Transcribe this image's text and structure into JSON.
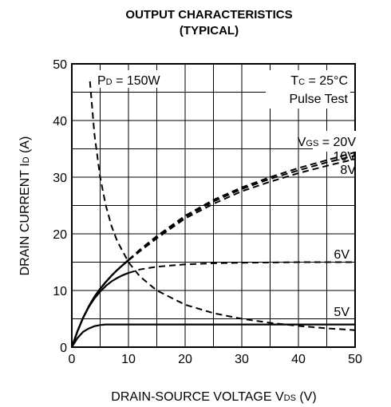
{
  "chart_data": {
    "type": "line",
    "title_line1": "OUTPUT CHARACTERISTICS",
    "title_line2": "(TYPICAL)",
    "xlabel_main": "DRAIN-SOURCE VOLTAGE  V",
    "xlabel_sub": "DS",
    "xlabel_unit": " (V)",
    "ylabel_main": "DRAIN CURRENT  I",
    "ylabel_sub": "D",
    "ylabel_unit": " (A)",
    "xlim": [
      0,
      50
    ],
    "ylim": [
      0,
      50
    ],
    "x_ticks": [
      0,
      10,
      20,
      30,
      40,
      50
    ],
    "y_ticks": [
      0,
      10,
      20,
      30,
      40,
      50
    ],
    "grid": true,
    "annotations": {
      "pd_main": "P",
      "pd_sub": "D",
      "pd_value": " = 150W",
      "tc_main": "T",
      "tc_sub": "C",
      "tc_value": " = 25°C",
      "pulse": "Pulse Test"
    },
    "series": [
      {
        "name": "20V",
        "label_main": "V",
        "label_sub": "GS",
        "label_text": " = 20V",
        "style": "solid-dashed",
        "x": [
          0,
          1,
          2,
          3,
          4,
          5,
          6,
          7,
          8,
          9,
          10,
          12,
          15,
          20,
          25,
          30,
          35,
          40,
          45,
          50
        ],
        "y": [
          0,
          2.8,
          5.2,
          7.2,
          8.9,
          10.3,
          11.5,
          12.6,
          13.6,
          14.5,
          15.4,
          17.2,
          19.6,
          23.2,
          26.0,
          28.2,
          30.0,
          31.6,
          33.0,
          34.4
        ]
      },
      {
        "name": "10V",
        "label_text": "10V",
        "style": "solid-dashed",
        "x": [
          0,
          1,
          2,
          3,
          4,
          5,
          6,
          7,
          8,
          9,
          10,
          12,
          15,
          20,
          25,
          30,
          35,
          40,
          45,
          50
        ],
        "y": [
          0,
          2.8,
          5.2,
          7.2,
          8.9,
          10.3,
          11.5,
          12.6,
          13.6,
          14.5,
          15.4,
          17.1,
          19.4,
          23.0,
          25.7,
          27.9,
          29.7,
          31.2,
          32.6,
          33.8
        ]
      },
      {
        "name": "8V",
        "label_text": "8V",
        "style": "solid-dashed",
        "x": [
          0,
          1,
          2,
          3,
          4,
          5,
          6,
          7,
          8,
          9,
          10,
          12,
          15,
          20,
          25,
          30,
          35,
          40,
          45,
          50
        ],
        "y": [
          0,
          2.8,
          5.2,
          7.2,
          8.9,
          10.3,
          11.5,
          12.6,
          13.6,
          14.5,
          15.3,
          16.9,
          19.2,
          22.7,
          25.3,
          27.5,
          29.2,
          30.7,
          32.0,
          33.2
        ]
      },
      {
        "name": "6V",
        "label_text": "6V",
        "style": "solid-dashed",
        "x": [
          0,
          1,
          2,
          3,
          4,
          5,
          6,
          7,
          8,
          9,
          10,
          11,
          12,
          15,
          20,
          25,
          30,
          35,
          40,
          45,
          50
        ],
        "y": [
          0,
          2.8,
          5.2,
          7.1,
          8.6,
          9.8,
          10.8,
          11.6,
          12.2,
          12.7,
          13.1,
          13.4,
          13.7,
          14.2,
          14.6,
          14.8,
          14.9,
          14.95,
          15.0,
          15.0,
          15.0
        ]
      },
      {
        "name": "5V",
        "label_text": "5V",
        "style": "solid",
        "x": [
          0,
          1,
          2,
          3,
          4,
          5,
          6,
          7,
          8,
          10,
          15,
          20,
          30,
          40,
          50
        ],
        "y": [
          0,
          1.6,
          2.7,
          3.3,
          3.7,
          3.9,
          4.0,
          4.0,
          4.0,
          4.0,
          4.0,
          4.0,
          4.0,
          4.0,
          4.0
        ]
      },
      {
        "name": "PD = 150W",
        "style": "dashed",
        "x": [
          3.2,
          4,
          5,
          6,
          7,
          8,
          10,
          12,
          15,
          20,
          25,
          30,
          35,
          40,
          45,
          50
        ],
        "y": [
          46.9,
          37.5,
          30.0,
          25.0,
          21.4,
          18.75,
          15.0,
          12.5,
          10.0,
          7.5,
          6.0,
          5.0,
          4.29,
          3.75,
          3.33,
          3.0
        ]
      }
    ]
  }
}
